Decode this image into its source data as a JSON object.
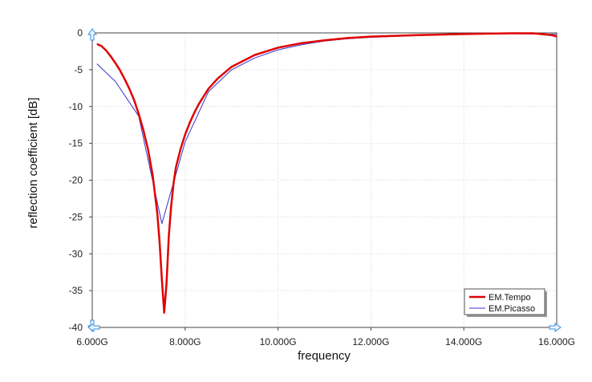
{
  "chart_data": {
    "type": "line",
    "title": "",
    "xlabel": "frequency",
    "ylabel": "reflection coefficient [dB]",
    "xlim": [
      6,
      16
    ],
    "ylim": [
      -40,
      0
    ],
    "x_ticks": [
      {
        "value": 6,
        "label": "6.000G"
      },
      {
        "value": 8,
        "label": "8.000G"
      },
      {
        "value": 10,
        "label": "10.000G"
      },
      {
        "value": 12,
        "label": "12.000G"
      },
      {
        "value": 14,
        "label": "14.000G"
      },
      {
        "value": 16,
        "label": "16.000G"
      }
    ],
    "y_ticks": [
      {
        "value": 0,
        "label": "0"
      },
      {
        "value": -5,
        "label": "-5"
      },
      {
        "value": -10,
        "label": "-10"
      },
      {
        "value": -15,
        "label": "-15"
      },
      {
        "value": -20,
        "label": "-20"
      },
      {
        "value": -25,
        "label": "-25"
      },
      {
        "value": -30,
        "label": "-30"
      },
      {
        "value": -35,
        "label": "-35"
      },
      {
        "value": -40,
        "label": "-40"
      }
    ],
    "grid": true,
    "legend_position": "bottom-right",
    "series": [
      {
        "name": "EM.Tempo",
        "color": "#e00000",
        "x": [
          6.1,
          6.2,
          6.3,
          6.4,
          6.5,
          6.6,
          6.7,
          6.8,
          6.9,
          7.0,
          7.1,
          7.2,
          7.3,
          7.4,
          7.45,
          7.5,
          7.55,
          7.6,
          7.65,
          7.7,
          7.75,
          7.8,
          7.9,
          8.0,
          8.1,
          8.2,
          8.3,
          8.4,
          8.5,
          8.7,
          9.0,
          9.5,
          10.0,
          10.5,
          11.0,
          11.5,
          12.0,
          13.0,
          14.0,
          15.0,
          15.5,
          15.9,
          16.0
        ],
        "y": [
          -1.5,
          -1.8,
          -2.4,
          -3.2,
          -4.1,
          -5.1,
          -6.3,
          -7.6,
          -9.1,
          -11.0,
          -13.2,
          -15.8,
          -19.3,
          -24.5,
          -28.5,
          -33.5,
          -38.0,
          -34.0,
          -27.5,
          -23.5,
          -20.5,
          -18.3,
          -15.8,
          -13.8,
          -12.2,
          -10.8,
          -9.6,
          -8.6,
          -7.6,
          -6.2,
          -4.6,
          -3.0,
          -2.0,
          -1.4,
          -1.0,
          -0.7,
          -0.5,
          -0.3,
          -0.15,
          -0.05,
          -0.05,
          -0.3,
          -0.5
        ]
      },
      {
        "name": "EM.Picasso",
        "color": "#3333cc",
        "x": [
          6.1,
          6.5,
          7.0,
          7.5,
          8.0,
          8.5,
          9.0,
          9.5,
          10.0,
          10.5,
          11.0,
          11.5,
          12.0,
          13.0,
          14.0,
          15.0,
          16.0
        ],
        "y": [
          -4.2,
          -6.6,
          -11.3,
          -25.9,
          -14.8,
          -8.0,
          -5.0,
          -3.4,
          -2.3,
          -1.6,
          -1.1,
          -0.8,
          -0.6,
          -0.35,
          -0.2,
          -0.1,
          -0.2
        ]
      }
    ]
  }
}
